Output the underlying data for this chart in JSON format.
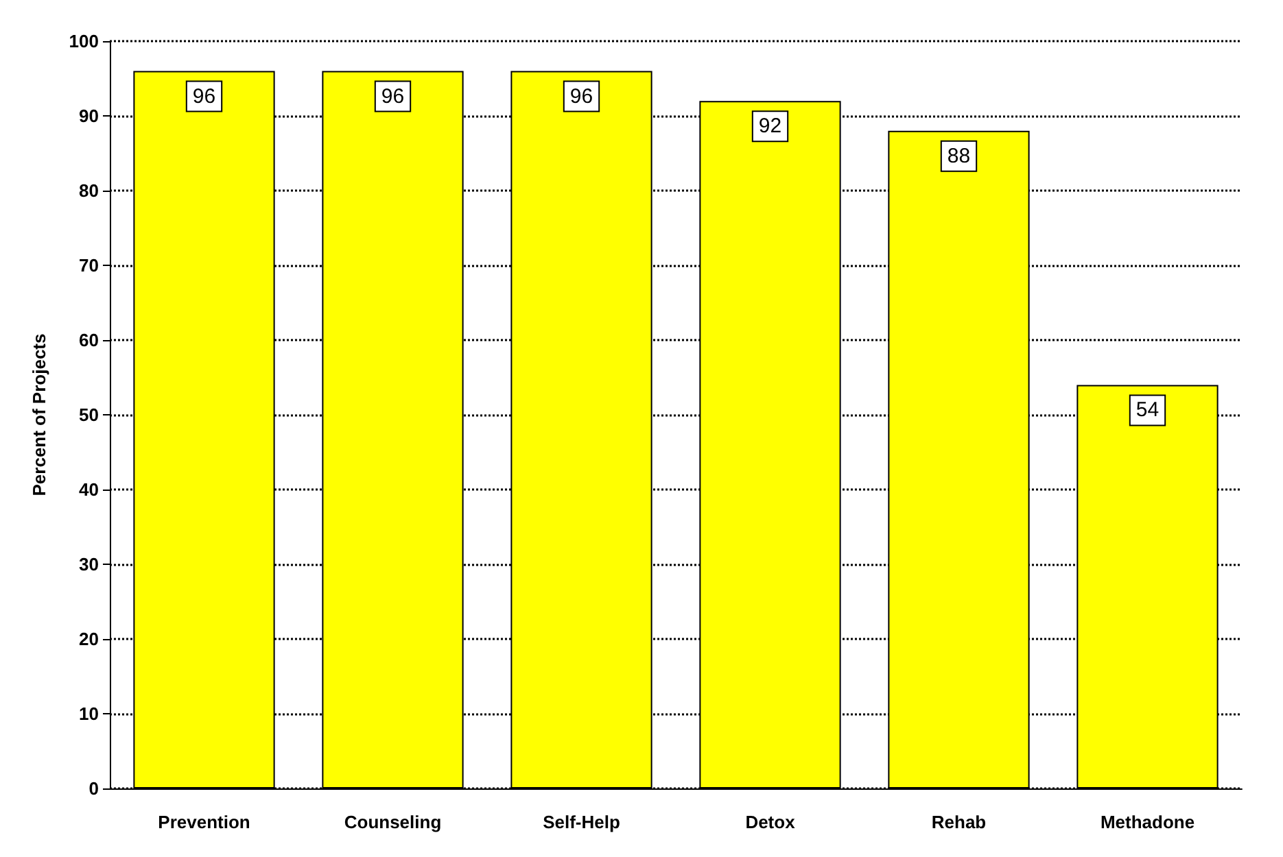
{
  "chart_data": {
    "type": "bar",
    "ylabel": "Percent of Projects",
    "categories": [
      "Prevention",
      "Counseling",
      "Self-Help",
      "Detox",
      "Rehab",
      "Methadone"
    ],
    "values": [
      96,
      96,
      96,
      92,
      88,
      54
    ],
    "color": "#ffff00",
    "ylim": [
      0,
      100
    ],
    "yticks": [
      0,
      10,
      20,
      30,
      40,
      50,
      60,
      70,
      80,
      90,
      100
    ],
    "grid": "y",
    "data_labels": true
  }
}
